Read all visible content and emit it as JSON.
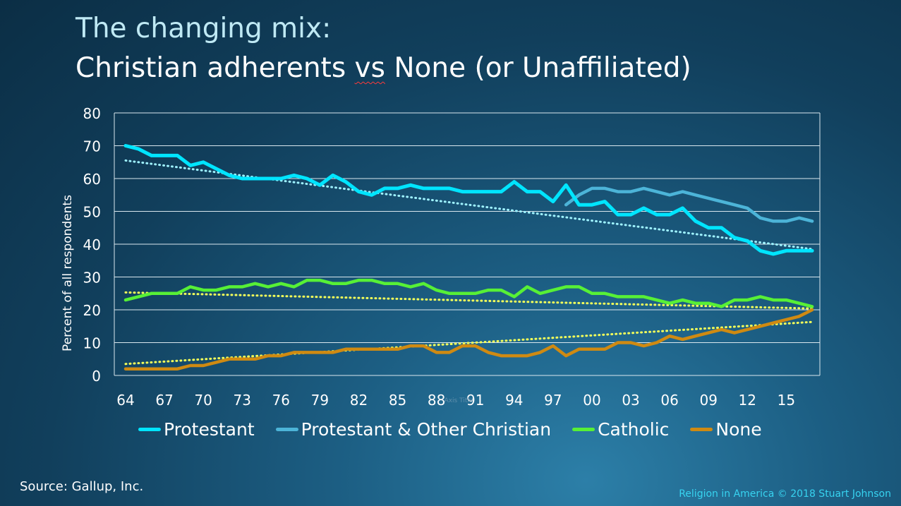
{
  "header": {
    "title_line1": "The changing mix:",
    "title_line2_a": "Christian adherents ",
    "title_line2_vs": "vs",
    "title_line2_b": " None (or Unaffiliated)"
  },
  "colors": {
    "protestant": "#00e5ff",
    "protestant_other": "#4cb4d8",
    "catholic": "#57f036",
    "none": "#cf8a12",
    "trend": "#f3ff5a"
  },
  "chart_data": {
    "type": "line",
    "ylabel": "Percent of all respondents",
    "xlabel": "Axis Title",
    "ylim": [
      0,
      80
    ],
    "yticks": [
      0,
      10,
      20,
      30,
      40,
      50,
      60,
      70,
      80
    ],
    "x": [
      1964,
      1965,
      1966,
      1967,
      1968,
      1969,
      1970,
      1971,
      1972,
      1973,
      1974,
      1975,
      1976,
      1977,
      1978,
      1979,
      1980,
      1981,
      1982,
      1983,
      1984,
      1985,
      1986,
      1987,
      1988,
      1989,
      1990,
      1991,
      1992,
      1993,
      1994,
      1995,
      1996,
      1997,
      1998,
      1999,
      2000,
      2001,
      2002,
      2003,
      2004,
      2005,
      2006,
      2007,
      2008,
      2009,
      2010,
      2011,
      2012,
      2013,
      2014,
      2015,
      2016,
      2017
    ],
    "xticks": [
      "64",
      "67",
      "70",
      "73",
      "76",
      "79",
      "82",
      "85",
      "88",
      "91",
      "94",
      "97",
      "00",
      "03",
      "06",
      "09",
      "12",
      "15"
    ],
    "grid": true,
    "legend_position": "bottom",
    "series": [
      {
        "name": "Protestant",
        "color": "#00e5ff",
        "values": [
          70,
          69,
          67,
          67,
          67,
          64,
          65,
          63,
          61,
          60,
          60,
          60,
          60,
          61,
          60,
          58,
          61,
          59,
          56,
          55,
          57,
          57,
          58,
          57,
          57,
          57,
          56,
          56,
          56,
          56,
          59,
          56,
          56,
          53,
          58,
          52,
          52,
          53,
          49,
          49,
          51,
          49,
          49,
          51,
          47,
          45,
          45,
          42,
          41,
          38,
          37,
          38,
          38,
          38
        ],
        "trend": [
          65.5,
          38.5
        ]
      },
      {
        "name": "Protestant & Other Christian",
        "color": "#4cb4d8",
        "start_index": 34,
        "values": [
          null,
          null,
          null,
          null,
          null,
          null,
          null,
          null,
          null,
          null,
          null,
          null,
          null,
          null,
          null,
          null,
          null,
          null,
          null,
          null,
          null,
          null,
          null,
          null,
          null,
          null,
          null,
          null,
          null,
          null,
          null,
          null,
          null,
          null,
          52,
          55,
          57,
          57,
          56,
          56,
          57,
          56,
          55,
          56,
          55,
          54,
          53,
          52,
          51,
          48,
          47,
          47,
          48,
          47
        ]
      },
      {
        "name": "Catholic",
        "color": "#57f036",
        "values": [
          23,
          24,
          25,
          25,
          25,
          27,
          26,
          26,
          27,
          27,
          28,
          27,
          28,
          27,
          29,
          29,
          28,
          28,
          29,
          29,
          28,
          28,
          27,
          28,
          26,
          25,
          25,
          25,
          26,
          26,
          24,
          27,
          25,
          26,
          27,
          27,
          25,
          25,
          24,
          24,
          24,
          23,
          22,
          23,
          22,
          22,
          21,
          23,
          23,
          24,
          23,
          23,
          22,
          21
        ],
        "trend": [
          25.3,
          20.4
        ]
      },
      {
        "name": "None",
        "color": "#cf8a12",
        "values": [
          2,
          2,
          2,
          2,
          2,
          3,
          3,
          4,
          5,
          5,
          5,
          6,
          6,
          7,
          7,
          7,
          7,
          8,
          8,
          8,
          8,
          8,
          9,
          9,
          7,
          7,
          9,
          9,
          7,
          6,
          6,
          6,
          7,
          9,
          6,
          8,
          8,
          8,
          10,
          10,
          9,
          10,
          12,
          11,
          12,
          13,
          14,
          13,
          14,
          15,
          16,
          17,
          18,
          20
        ],
        "trend": [
          3.5,
          16.3
        ]
      }
    ]
  },
  "footer": {
    "source": "Source: Gallup, Inc.",
    "credit": "Religion in America © 2018 Stuart Johnson"
  }
}
